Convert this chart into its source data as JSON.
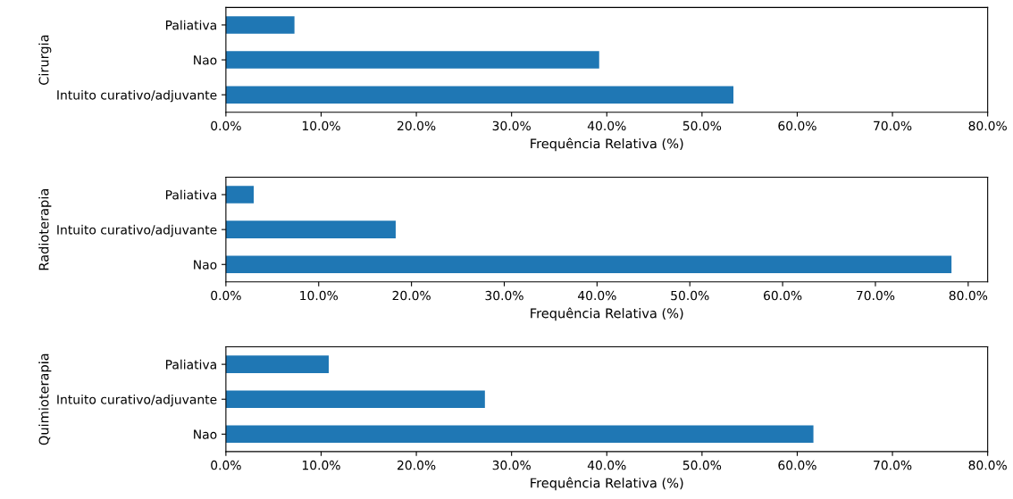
{
  "chart_data": [
    {
      "type": "bar",
      "orientation": "horizontal",
      "ylabel": "Cirurgia",
      "xlabel": "Frequência Relativa (%)",
      "categories": [
        "Paliativa",
        "Nao",
        "Intuito curativo/adjuvante"
      ],
      "values": [
        7.2,
        39.2,
        53.3
      ],
      "color": "#1f77b4",
      "xlim": [
        0,
        80
      ],
      "xticks": [
        {
          "value": 0,
          "label": "0.0%"
        },
        {
          "value": 10,
          "label": "10.0%"
        },
        {
          "value": 20,
          "label": "20.0%"
        },
        {
          "value": 30,
          "label": "30.0%"
        },
        {
          "value": 40,
          "label": "40.0%"
        },
        {
          "value": 50,
          "label": "50.0%"
        },
        {
          "value": 60,
          "label": "60.0%"
        },
        {
          "value": 70,
          "label": "70.0%"
        },
        {
          "value": 80,
          "label": "80.0%"
        }
      ],
      "grid": false,
      "legend": false
    },
    {
      "type": "bar",
      "orientation": "horizontal",
      "ylabel": "Radioterapia",
      "xlabel": "Frequência Relativa (%)",
      "categories": [
        "Paliativa",
        "Intuito curativo/adjuvante",
        "Nao"
      ],
      "values": [
        3.0,
        18.3,
        78.2
      ],
      "color": "#1f77b4",
      "xlim": [
        0,
        82.1
      ],
      "xticks": [
        {
          "value": 0,
          "label": "0.0%"
        },
        {
          "value": 10,
          "label": "10.0%"
        },
        {
          "value": 20,
          "label": "20.0%"
        },
        {
          "value": 30,
          "label": "30.0%"
        },
        {
          "value": 40,
          "label": "40.0%"
        },
        {
          "value": 50,
          "label": "50.0%"
        },
        {
          "value": 60,
          "label": "60.0%"
        },
        {
          "value": 70,
          "label": "70.0%"
        },
        {
          "value": 80,
          "label": "80.0%"
        }
      ],
      "grid": false,
      "legend": false
    },
    {
      "type": "bar",
      "orientation": "horizontal",
      "ylabel": "Quimioterapia",
      "xlabel": "Frequência Relativa (%)",
      "categories": [
        "Paliativa",
        "Intuito curativo/adjuvante",
        "Nao"
      ],
      "values": [
        10.8,
        27.2,
        61.7
      ],
      "color": "#1f77b4",
      "xlim": [
        0,
        80
      ],
      "xticks": [
        {
          "value": 0,
          "label": "0.0%"
        },
        {
          "value": 10,
          "label": "10.0%"
        },
        {
          "value": 20,
          "label": "20.0%"
        },
        {
          "value": 30,
          "label": "30.0%"
        },
        {
          "value": 40,
          "label": "40.0%"
        },
        {
          "value": 50,
          "label": "50.0%"
        },
        {
          "value": 60,
          "label": "60.0%"
        },
        {
          "value": 70,
          "label": "70.0%"
        },
        {
          "value": 80,
          "label": "80.0%"
        }
      ],
      "grid": false,
      "legend": false
    }
  ]
}
